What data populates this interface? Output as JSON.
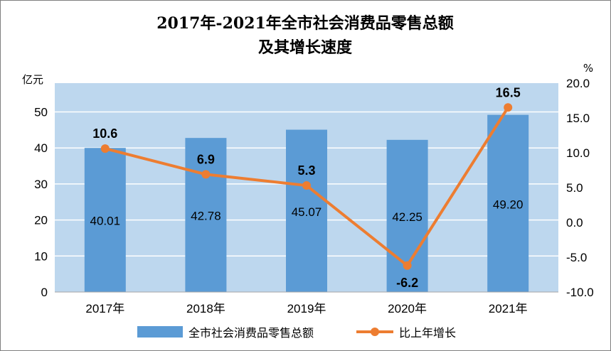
{
  "chart_data": {
    "type": "bar",
    "title_lines": [
      "2017年-2021年全市社会消费品零售总额",
      "及其增长速度"
    ],
    "categories": [
      "2017年",
      "2018年",
      "2019年",
      "2020年",
      "2021年"
    ],
    "series": [
      {
        "name": "全市社会消费品零售总额",
        "type": "bar",
        "axis": "left",
        "values": [
          40.01,
          42.78,
          45.07,
          42.25,
          49.2
        ],
        "labels": [
          "40.01",
          "42.78",
          "45.07",
          "42.25",
          "49.20"
        ],
        "color": "#5b9bd5"
      },
      {
        "name": "比上年增长",
        "type": "line",
        "axis": "right",
        "values": [
          10.6,
          6.9,
          5.3,
          -6.2,
          16.5
        ],
        "labels": [
          "10.6",
          "6.9",
          "5.3",
          "-6.2",
          "16.5"
        ],
        "color": "#ed7d31"
      }
    ],
    "y_left": {
      "unit": "亿元",
      "ylim": [
        0,
        58
      ],
      "ticks": [
        "0",
        "10",
        "20",
        "30",
        "40",
        "50"
      ]
    },
    "y_right": {
      "unit": "%",
      "ylim": [
        -10,
        20
      ],
      "ticks": [
        "-10.0",
        "-5.0",
        "0.0",
        "5.0",
        "10.0",
        "15.0",
        "20.0"
      ]
    },
    "plot_background": "#bdd7ee",
    "grid": true,
    "legend_position": "bottom"
  }
}
